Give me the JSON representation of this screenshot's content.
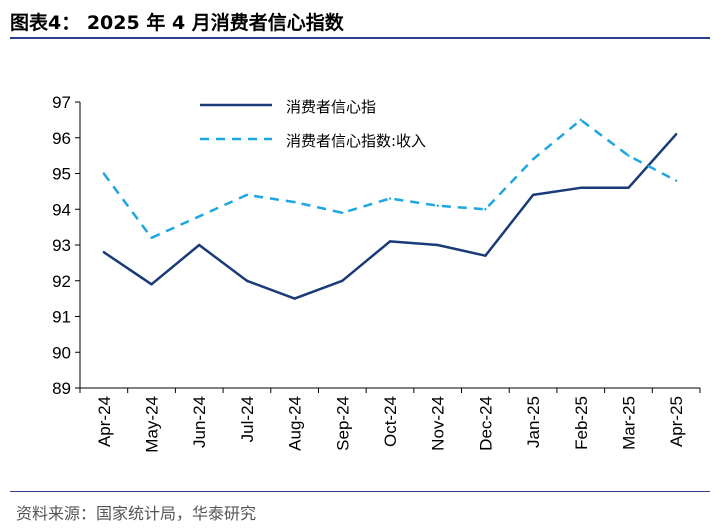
{
  "page": {
    "title": "图表4：  2025 年 4 月消费者信心指数",
    "source": "资料来源：国家统计局，华泰研究"
  },
  "colors": {
    "rule": "#2b3f8c",
    "series_confidence": "#1a3a78",
    "series_income": "#1ea6e0"
  },
  "chart_data": {
    "type": "line",
    "categories": [
      "Apr-24",
      "May-24",
      "Jun-24",
      "Jul-24",
      "Aug-24",
      "Sep-24",
      "Oct-24",
      "Nov-24",
      "Dec-24",
      "Jan-25",
      "Feb-25",
      "Mar-25",
      "Apr-25"
    ],
    "series": [
      {
        "name": "消费者信心指",
        "style": "solid",
        "values": [
          92.8,
          91.9,
          93.0,
          92.0,
          91.5,
          92.0,
          93.1,
          93.0,
          92.7,
          94.4,
          94.6,
          94.6,
          96.1
        ]
      },
      {
        "name": "消费者信心指数:收入",
        "style": "dashed",
        "values": [
          95.0,
          93.2,
          93.8,
          94.4,
          94.2,
          93.9,
          94.3,
          94.1,
          94.0,
          95.4,
          96.5,
          95.5,
          94.8
        ]
      }
    ],
    "yticks": [
      "89",
      "90",
      "91",
      "92",
      "93",
      "94",
      "95",
      "96",
      "97"
    ],
    "ylim": [
      89,
      97
    ],
    "grid": false,
    "legend": "top-center"
  }
}
